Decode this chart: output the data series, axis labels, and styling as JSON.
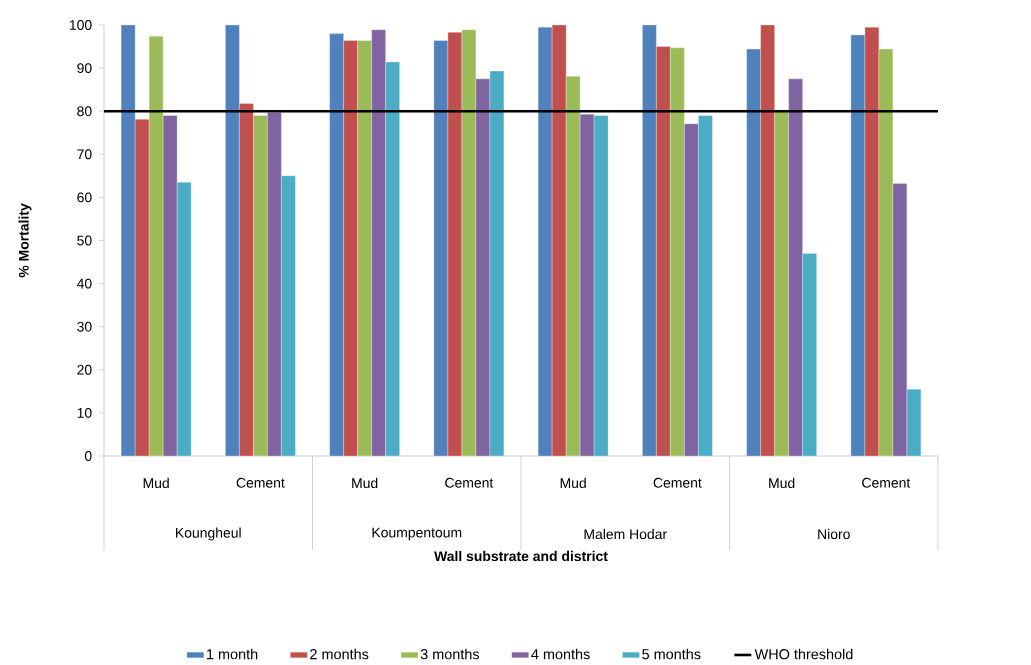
{
  "chart_data": {
    "type": "bar",
    "xlabel": "Wall substrate and district",
    "ylabel": "% Mortality",
    "categories": [
      "Mud",
      "Cement",
      "Mud",
      "Cement",
      "Mud",
      "Cement",
      "Mud",
      "Cement"
    ],
    "annotations": [
      "Koungheul",
      "Koumpentoum",
      "Malem Hodar",
      "Nioro"
    ],
    "series": [
      {
        "name": "1 month",
        "color": "#4f81bd",
        "values": [
          100,
          100,
          98.0,
          96.4,
          99.5,
          100,
          94.4,
          97.7
        ]
      },
      {
        "name": "2 months",
        "color": "#c0504d",
        "values": [
          78.1,
          81.8,
          96.4,
          98.3,
          100,
          95.0,
          100,
          99.5
        ]
      },
      {
        "name": "3 months",
        "color": "#9bbb59",
        "values": [
          97.4,
          79.0,
          96.4,
          98.9,
          88.1,
          94.7,
          80,
          94.4
        ]
      },
      {
        "name": "4 months",
        "color": "#8064a2",
        "values": [
          79.0,
          79.7,
          98.9,
          87.5,
          79.3,
          77.1,
          87.5,
          63.2
        ]
      },
      {
        "name": "5 months",
        "color": "#4bacc6",
        "values": [
          63.5,
          65.0,
          91.4,
          89.3,
          79.0,
          79.0,
          47.0,
          15.5
        ]
      }
    ],
    "ref_lines": [
      {
        "axis": "y",
        "value": 80,
        "label": "WHO threshold",
        "color": "#000000"
      }
    ],
    "ylim": [
      0,
      100
    ],
    "yticks": [
      0,
      10,
      20,
      30,
      40,
      50,
      60,
      70,
      80,
      90,
      100
    ],
    "grid": false,
    "legend": "bottom"
  }
}
